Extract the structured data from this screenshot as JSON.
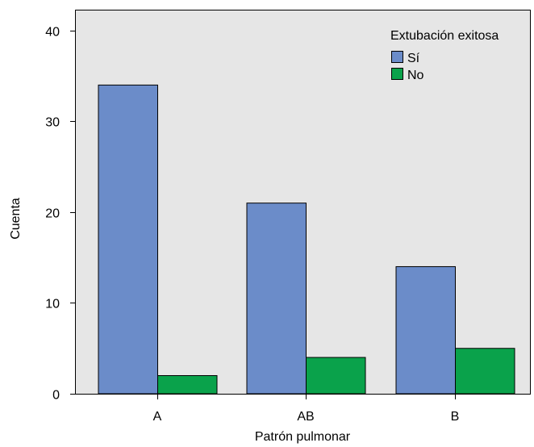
{
  "chart_data": {
    "type": "bar",
    "categories": [
      "A",
      "AB",
      "B"
    ],
    "series": [
      {
        "name": "Sí",
        "values": [
          34,
          21,
          14
        ],
        "color": "#6b8cc9"
      },
      {
        "name": "No",
        "values": [
          2,
          4,
          5
        ],
        "color": "#0aa24b"
      }
    ],
    "xlabel": "Patrón pulmonar",
    "ylabel": "Cuenta",
    "ylim": [
      0,
      42.3
    ],
    "yticks": [
      0,
      10,
      20,
      30,
      40
    ],
    "legend": {
      "title": "Extubación exitosa",
      "position": "top-right"
    },
    "grid": false,
    "background_color": "#e6e6e6"
  }
}
